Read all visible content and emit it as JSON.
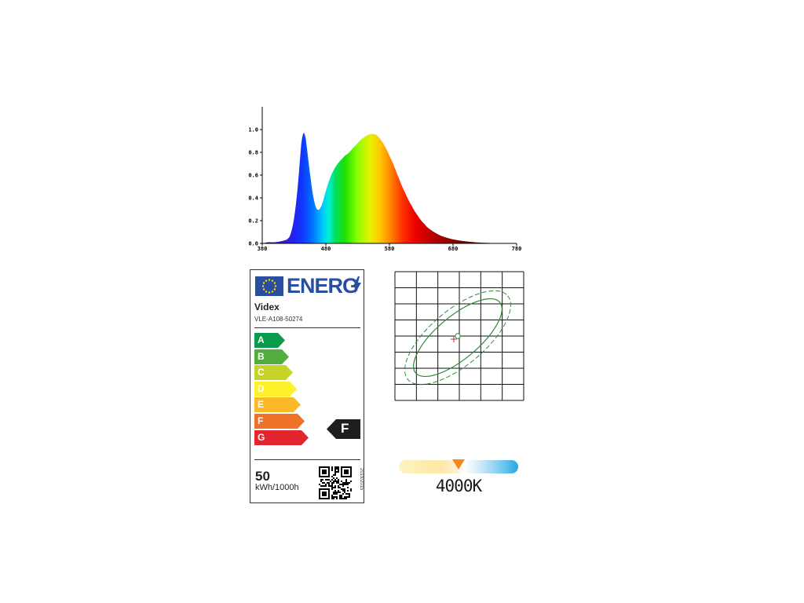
{
  "chart_data": {
    "type": "area",
    "title": "",
    "xlabel": "",
    "ylabel": "",
    "xlim": [
      380,
      780
    ],
    "ylim": [
      0,
      1.0
    ],
    "x_ticks": [
      "380",
      "480",
      "580",
      "680",
      "780"
    ],
    "y_ticks": [
      "0.0",
      "0.2",
      "0.4",
      "0.6",
      "0.8",
      "1.0"
    ],
    "grid": false,
    "x": [
      380,
      390,
      400,
      410,
      420,
      425,
      430,
      435,
      440,
      442,
      445,
      448,
      450,
      455,
      460,
      465,
      470,
      475,
      480,
      485,
      490,
      495,
      500,
      505,
      510,
      515,
      520,
      525,
      530,
      535,
      540,
      545,
      550,
      555,
      560,
      565,
      570,
      575,
      580,
      585,
      590,
      595,
      600,
      605,
      610,
      615,
      620,
      625,
      630,
      635,
      640,
      650,
      660,
      670,
      680,
      690,
      700,
      710,
      720,
      730,
      740,
      750,
      760,
      770,
      780
    ],
    "y": [
      0.0,
      0.01,
      0.01,
      0.02,
      0.04,
      0.09,
      0.22,
      0.45,
      0.78,
      0.9,
      0.97,
      0.93,
      0.85,
      0.62,
      0.42,
      0.31,
      0.3,
      0.36,
      0.46,
      0.55,
      0.62,
      0.67,
      0.71,
      0.74,
      0.77,
      0.79,
      0.82,
      0.85,
      0.88,
      0.91,
      0.93,
      0.95,
      0.96,
      0.96,
      0.95,
      0.92,
      0.88,
      0.83,
      0.77,
      0.71,
      0.64,
      0.57,
      0.5,
      0.44,
      0.38,
      0.33,
      0.28,
      0.24,
      0.2,
      0.17,
      0.14,
      0.1,
      0.07,
      0.05,
      0.035,
      0.025,
      0.018,
      0.012,
      0.008,
      0.005,
      0.003,
      0.002,
      0.001,
      0.0,
      0.0
    ]
  },
  "energy_label": {
    "header": "ENERG",
    "brand": "Videx",
    "model": "VLE-A108-50274",
    "classes": [
      {
        "letter": "A",
        "color": "#0a9a4b"
      },
      {
        "letter": "B",
        "color": "#53ae3d"
      },
      {
        "letter": "C",
        "color": "#c6d42a"
      },
      {
        "letter": "D",
        "color": "#fef12a"
      },
      {
        "letter": "E",
        "color": "#fbb928"
      },
      {
        "letter": "F",
        "color": "#ee7329"
      },
      {
        "letter": "G",
        "color": "#e3262d"
      }
    ],
    "rating": "F",
    "kwh_value": "50",
    "kwh_unit": "kWh/1000h",
    "regulation": "2019/2015"
  },
  "color_temperature": {
    "label": "4000K",
    "marker_color": "#f08a1c",
    "marker_position": 0.5
  }
}
